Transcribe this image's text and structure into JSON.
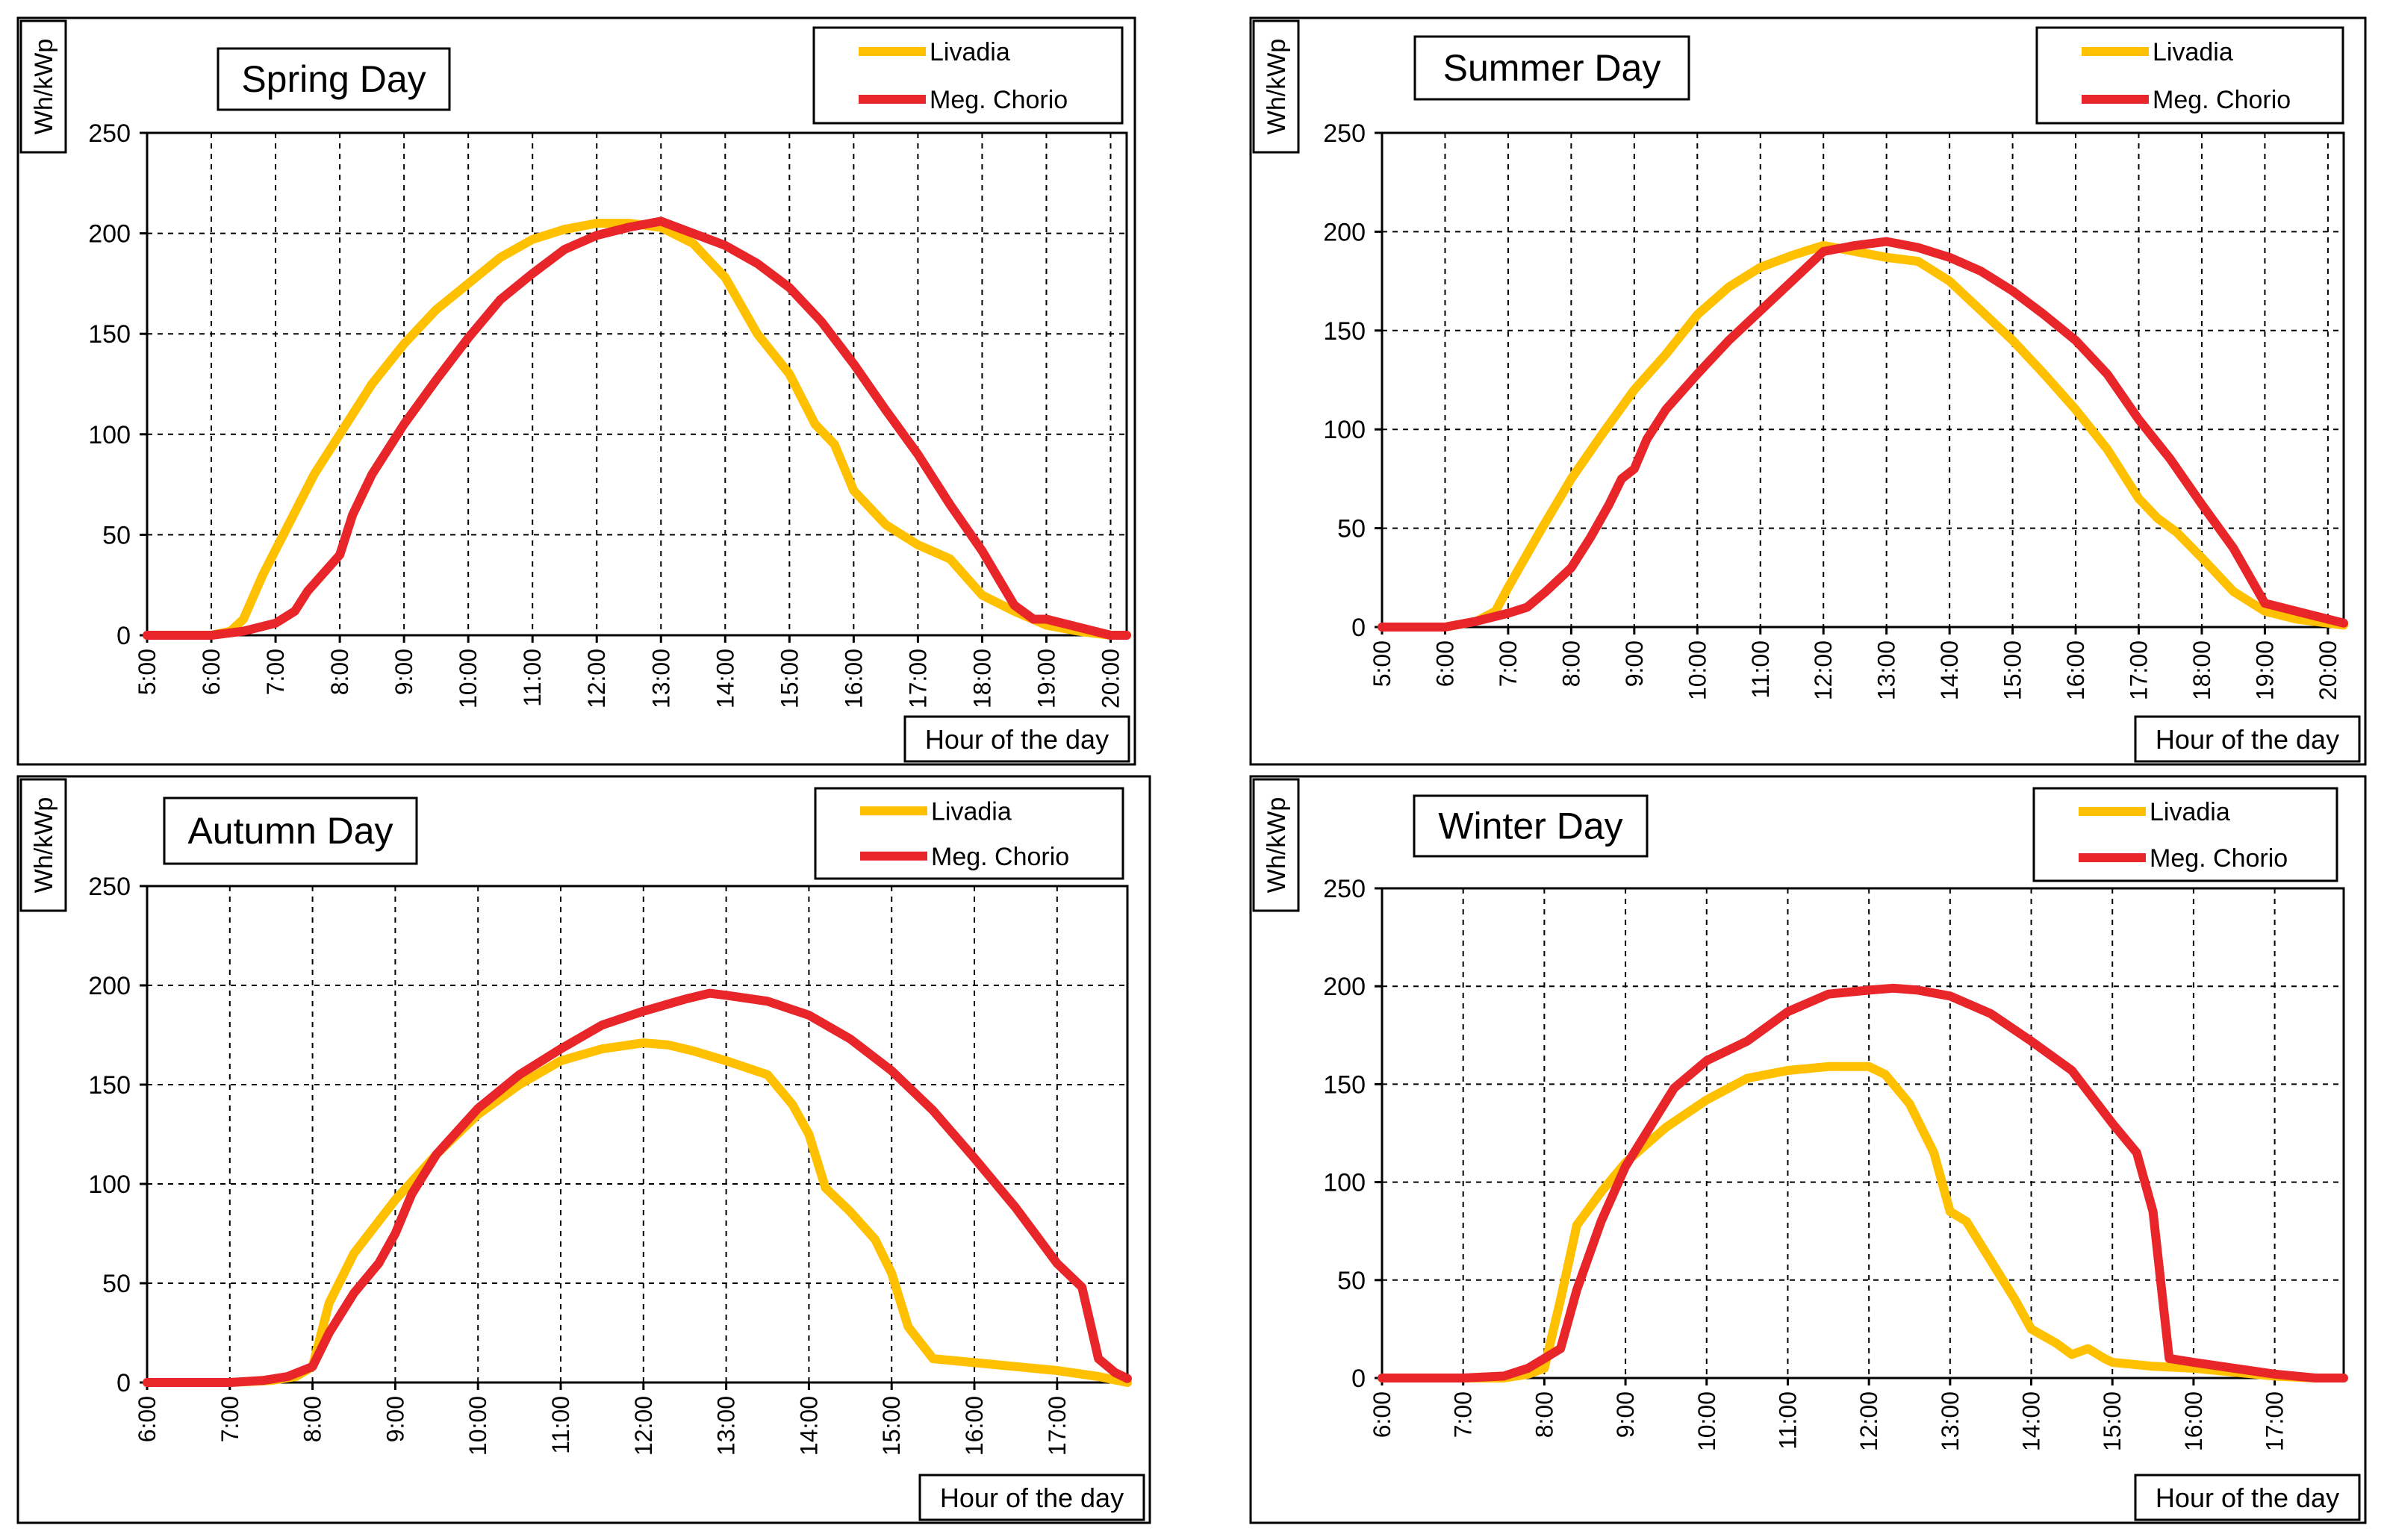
{
  "figure": {
    "background": "#ffffff",
    "colors": {
      "livadia": "#FFC000",
      "meg_chorio": "#E8262A",
      "frame": "#000000",
      "grid": "#000000"
    }
  },
  "chart_data": [
    {
      "type": "line",
      "title": "Spring Day",
      "ylabel": "Wh/kWp",
      "xlabel": "Hour of the day",
      "ylim": [
        0,
        250
      ],
      "yticks": [
        0,
        50,
        100,
        150,
        200,
        250
      ],
      "xlim": [
        5,
        20.25
      ],
      "xticks": [
        5,
        6,
        7,
        8,
        9,
        10,
        11,
        12,
        13,
        14,
        15,
        16,
        17,
        18,
        19,
        20
      ],
      "xtick_labels": [
        "5:00",
        "6:00",
        "7:00",
        "8:00",
        "9:00",
        "10:00",
        "11:00",
        "12:00",
        "13:00",
        "14:00",
        "15:00",
        "16:00",
        "17:00",
        "18:00",
        "19:00",
        "20:00"
      ],
      "grid": true,
      "legend": "top-right",
      "series": [
        {
          "name": "Livadia",
          "x": [
            5,
            6.0,
            6.3,
            6.5,
            6.8,
            7.2,
            7.6,
            8.0,
            8.5,
            9.0,
            9.5,
            10.0,
            10.5,
            11.0,
            11.5,
            12.0,
            12.5,
            13.0,
            13.5,
            14.0,
            14.5,
            15.0,
            15.4,
            15.7,
            16.0,
            16.5,
            17.0,
            17.5,
            18.0,
            18.5,
            19.0,
            19.5,
            20.0,
            20.25
          ],
          "y": [
            0,
            0,
            2,
            8,
            30,
            55,
            80,
            100,
            125,
            145,
            162,
            175,
            188,
            197,
            202,
            205,
            205,
            203,
            195,
            178,
            150,
            130,
            105,
            95,
            72,
            55,
            45,
            38,
            20,
            12,
            5,
            2,
            0,
            0
          ]
        },
        {
          "name": "Meg. Chorio",
          "x": [
            5,
            6.0,
            6.5,
            7.0,
            7.3,
            7.5,
            8.0,
            8.2,
            8.5,
            9.0,
            9.5,
            10.0,
            10.5,
            11.0,
            11.5,
            12.0,
            12.5,
            13.0,
            13.5,
            14.0,
            14.5,
            15.0,
            15.5,
            16.0,
            16.5,
            17.0,
            17.5,
            18.0,
            18.5,
            18.8,
            19.0,
            19.5,
            20.0,
            20.25
          ],
          "y": [
            0,
            0,
            2,
            6,
            12,
            22,
            40,
            60,
            80,
            105,
            127,
            148,
            167,
            180,
            192,
            199,
            203,
            206,
            200,
            194,
            185,
            173,
            156,
            135,
            112,
            90,
            65,
            42,
            15,
            8,
            8,
            4,
            0,
            0
          ]
        }
      ]
    },
    {
      "type": "line",
      "title": "Summer Day",
      "ylabel": "Wh/kWp",
      "xlabel": "Hour of the day",
      "ylim": [
        0,
        250
      ],
      "yticks": [
        0,
        50,
        100,
        150,
        200,
        250
      ],
      "xlim": [
        5,
        20.25
      ],
      "xticks": [
        5,
        6,
        7,
        8,
        9,
        10,
        11,
        12,
        13,
        14,
        15,
        16,
        17,
        18,
        19,
        20
      ],
      "xtick_labels": [
        "5:00",
        "6:00",
        "7:00",
        "8:00",
        "9:00",
        "10:00",
        "11:00",
        "12:00",
        "13:00",
        "14:00",
        "15:00",
        "16:00",
        "17:00",
        "18:00",
        "19:00",
        "20:00"
      ],
      "grid": true,
      "legend": "top-right",
      "series": [
        {
          "name": "Livadia",
          "x": [
            5,
            6.0,
            6.5,
            6.8,
            7.0,
            7.5,
            8.0,
            8.5,
            9.0,
            9.5,
            10.0,
            10.5,
            11.0,
            11.5,
            12.0,
            12.5,
            13.0,
            13.5,
            14.0,
            14.5,
            15.0,
            15.5,
            16.0,
            16.5,
            17.0,
            17.3,
            17.6,
            18.0,
            18.5,
            19.0,
            19.5,
            20.0,
            20.25
          ],
          "y": [
            0,
            0,
            3,
            8,
            20,
            48,
            75,
            98,
            120,
            138,
            158,
            172,
            182,
            188,
            193,
            190,
            187,
            185,
            175,
            160,
            145,
            128,
            110,
            90,
            65,
            55,
            48,
            35,
            18,
            8,
            4,
            2,
            1
          ]
        },
        {
          "name": "Meg. Chorio",
          "x": [
            5,
            6.0,
            6.5,
            7.0,
            7.3,
            7.6,
            8.0,
            8.3,
            8.6,
            8.8,
            9.0,
            9.2,
            9.5,
            10.0,
            10.5,
            11.0,
            11.5,
            12.0,
            12.5,
            13.0,
            13.5,
            14.0,
            14.5,
            15.0,
            15.5,
            16.0,
            16.5,
            17.0,
            17.5,
            18.0,
            18.5,
            19.0,
            19.5,
            20.0,
            20.25
          ],
          "y": [
            0,
            0,
            3,
            7,
            10,
            18,
            30,
            45,
            62,
            75,
            80,
            95,
            110,
            128,
            145,
            160,
            175,
            190,
            193,
            195,
            192,
            187,
            180,
            170,
            158,
            145,
            128,
            105,
            85,
            62,
            40,
            12,
            8,
            4,
            2
          ]
        }
      ]
    },
    {
      "type": "line",
      "title": "Autumn Day",
      "ylabel": "Wh/kWp",
      "xlabel": "Hour of the day",
      "ylim": [
        0,
        250
      ],
      "yticks": [
        0,
        50,
        100,
        150,
        200,
        250
      ],
      "xlim": [
        6,
        17.85
      ],
      "xticks": [
        6,
        7,
        8,
        9,
        10,
        11,
        12,
        13,
        14,
        15,
        16,
        17
      ],
      "xtick_labels": [
        "6:00",
        "7:00",
        "8:00",
        "9:00",
        "10:00",
        "11:00",
        "12:00",
        "13:00",
        "14:00",
        "15:00",
        "16:00",
        "17:00"
      ],
      "grid": true,
      "legend": "top-right",
      "series": [
        {
          "name": "Livadia",
          "x": [
            6,
            7.0,
            7.5,
            7.8,
            8.0,
            8.2,
            8.5,
            9.0,
            9.5,
            10.0,
            10.5,
            11.0,
            11.5,
            12.0,
            12.3,
            12.6,
            13.0,
            13.5,
            13.8,
            14.0,
            14.2,
            14.5,
            14.8,
            15.0,
            15.2,
            15.5,
            16.0,
            16.5,
            17.0,
            17.5,
            17.85
          ],
          "y": [
            0,
            0,
            1,
            3,
            8,
            40,
            65,
            92,
            115,
            135,
            150,
            162,
            168,
            171,
            170,
            167,
            162,
            155,
            140,
            125,
            98,
            86,
            72,
            55,
            28,
            12,
            10,
            8,
            6,
            3,
            0
          ]
        },
        {
          "name": "Meg. Chorio",
          "x": [
            6,
            7.0,
            7.4,
            7.7,
            8.0,
            8.2,
            8.5,
            8.8,
            9.0,
            9.2,
            9.5,
            10.0,
            10.5,
            11.0,
            11.5,
            12.0,
            12.5,
            12.8,
            13.0,
            13.5,
            14.0,
            14.5,
            15.0,
            15.5,
            16.0,
            16.5,
            17.0,
            17.3,
            17.5,
            17.7,
            17.85
          ],
          "y": [
            0,
            0,
            1,
            3,
            8,
            25,
            45,
            60,
            75,
            95,
            115,
            138,
            155,
            168,
            180,
            187,
            193,
            196,
            195,
            192,
            185,
            173,
            157,
            137,
            113,
            88,
            60,
            48,
            12,
            5,
            2
          ]
        }
      ]
    },
    {
      "type": "line",
      "title": "Winter Day",
      "ylabel": "Wh/kWp",
      "xlabel": "Hour of the day",
      "ylim": [
        0,
        250
      ],
      "yticks": [
        0,
        50,
        100,
        150,
        200,
        250
      ],
      "xlim": [
        6,
        17.85
      ],
      "xticks": [
        6,
        7,
        8,
        9,
        10,
        11,
        12,
        13,
        14,
        15,
        16,
        17
      ],
      "xtick_labels": [
        "6:00",
        "7:00",
        "8:00",
        "9:00",
        "10:00",
        "11:00",
        "12:00",
        "13:00",
        "14:00",
        "15:00",
        "16:00",
        "17:00"
      ],
      "grid": true,
      "legend": "top-right",
      "series": [
        {
          "name": "Livadia",
          "x": [
            6,
            7.0,
            7.5,
            7.8,
            8.0,
            8.2,
            8.4,
            8.7,
            9.0,
            9.5,
            10.0,
            10.5,
            11.0,
            11.5,
            12.0,
            12.2,
            12.5,
            12.8,
            13.0,
            13.2,
            13.5,
            13.8,
            14.0,
            14.3,
            14.5,
            14.7,
            14.9,
            15.0,
            15.5,
            16.0,
            16.5,
            17.0,
            17.5,
            17.85
          ],
          "y": [
            0,
            0,
            0,
            2,
            5,
            40,
            78,
            95,
            110,
            128,
            142,
            153,
            157,
            159,
            159,
            155,
            140,
            115,
            85,
            80,
            60,
            40,
            25,
            18,
            12,
            15,
            10,
            8,
            6,
            5,
            3,
            1,
            0,
            0
          ]
        },
        {
          "name": "Meg. Chorio",
          "x": [
            6,
            7.0,
            7.5,
            7.8,
            8.0,
            8.2,
            8.4,
            8.7,
            9.0,
            9.3,
            9.6,
            10.0,
            10.5,
            11.0,
            11.5,
            12.0,
            12.3,
            12.6,
            13.0,
            13.5,
            14.0,
            14.5,
            15.0,
            15.3,
            15.5,
            15.7,
            16.0,
            16.5,
            17.0,
            17.5,
            17.85
          ],
          "y": [
            0,
            0,
            1,
            5,
            10,
            15,
            45,
            80,
            108,
            128,
            148,
            162,
            172,
            187,
            196,
            198,
            199,
            198,
            195,
            186,
            172,
            157,
            130,
            115,
            85,
            10,
            8,
            5,
            2,
            0,
            0
          ]
        }
      ]
    }
  ]
}
